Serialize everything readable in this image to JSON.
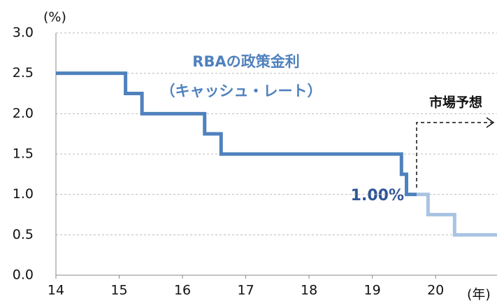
{
  "chart_data": {
    "type": "step",
    "y_label": "(%)",
    "x_label": "(年)",
    "annotations": {
      "policy_rate": "RBAの政策金利",
      "policy_rate_sub": "（キャッシュ・レート）",
      "current": "1.00%",
      "forecast": "市場予想"
    },
    "series": [
      {
        "color": "#4f81bd",
        "x": [
          14.0,
          15.1,
          15.36,
          16.35,
          16.61,
          19.46,
          19.54,
          19.7
        ],
        "values": [
          2.5,
          2.25,
          2.0,
          1.75,
          1.5,
          1.25,
          1.0,
          1.0
        ]
      },
      {
        "color": "#a9c4e2",
        "x": [
          19.7,
          19.88,
          20.3,
          20.97
        ],
        "values": [
          1.0,
          0.75,
          0.5,
          0.5
        ]
      }
    ],
    "xlim": [
      14,
      20.97
    ],
    "xticks": [
      14,
      15,
      16,
      17,
      18,
      19,
      20
    ],
    "ylim": [
      0,
      3
    ],
    "yticks": [
      {
        "value": 0,
        "label": "0.0"
      },
      {
        "value": 0.5,
        "label": "0.5"
      },
      {
        "value": 1,
        "label": "1.0"
      },
      {
        "value": 1.5,
        "label": "1.5"
      },
      {
        "value": 2,
        "label": "2.0"
      },
      {
        "value": 2.5,
        "label": "2.5"
      },
      {
        "value": 3,
        "label": "3.0"
      }
    ],
    "grid": true
  }
}
